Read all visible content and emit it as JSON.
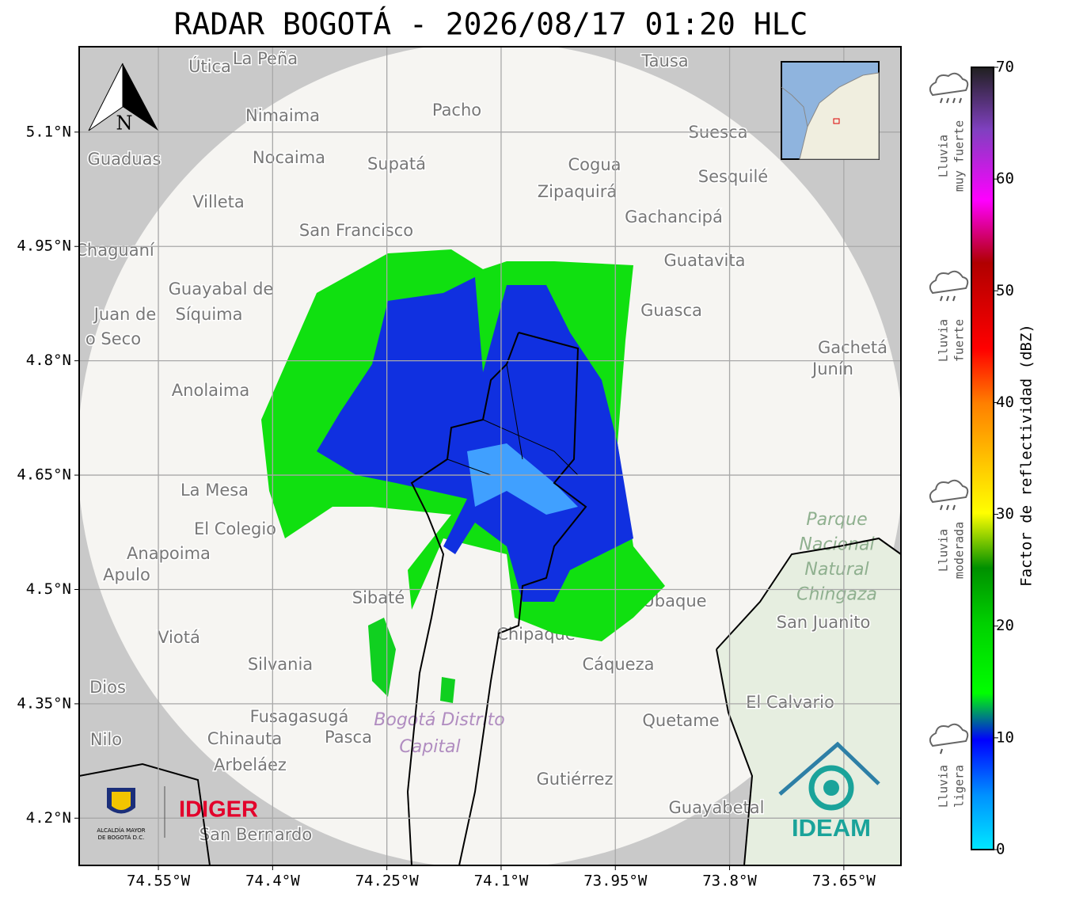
{
  "title": "RADAR BOGOTÁ - 2026/08/17 01:20 HLC",
  "map": {
    "xlim": [
      -74.654,
      -73.575
    ],
    "ylim": [
      4.138,
      5.212
    ],
    "xticks": [
      {
        "value": -74.55,
        "label": "74.55°W"
      },
      {
        "value": -74.4,
        "label": "74.4°W"
      },
      {
        "value": -74.25,
        "label": "74.25°W"
      },
      {
        "value": -74.1,
        "label": "74.1°W"
      },
      {
        "value": -73.95,
        "label": "73.95°W"
      },
      {
        "value": -73.8,
        "label": "73.8°W"
      },
      {
        "value": -73.65,
        "label": "73.65°W"
      }
    ],
    "yticks": [
      {
        "value": 5.1,
        "label": "5.1°N"
      },
      {
        "value": 4.95,
        "label": "4.95°N"
      },
      {
        "value": 4.8,
        "label": "4.8°N"
      },
      {
        "value": 4.65,
        "label": "4.65°N"
      },
      {
        "value": 4.5,
        "label": "4.5°N"
      },
      {
        "value": 4.35,
        "label": "4.35°N"
      },
      {
        "value": 4.2,
        "label": "4.2°N"
      }
    ],
    "grid": true,
    "north": "N",
    "places": [
      "Útica",
      "La Peña",
      "Tausa",
      "Pacho",
      "Nimaima",
      "Guaduas",
      "Nocaima",
      "Supatá",
      "Cogua",
      "Suesca",
      "Sesquilé",
      "Zipaquirá",
      "Villeta",
      "Gachancipá",
      "San Francisco",
      "Chaguaní",
      "Guatavita",
      "Guayabal de",
      "Síquima",
      "Juan de",
      "Guasca",
      "o Seco",
      "Gachetá",
      "Junín",
      "Anolaima",
      "La Mesa",
      "El Colegio",
      "Anapoima",
      "Apulo",
      "Sibaté",
      "Viotá",
      "Silvania",
      "Cáqueza",
      "Dios",
      "El Calvario",
      "Fusagasugá",
      "Quetame",
      "Nilo",
      "Chinauta",
      "Pasca",
      "Arbeláez",
      "Gutiérrez",
      "Guayabetal",
      "San Bernardo",
      "Ubaque",
      "San Juanito",
      "Chipaque"
    ],
    "areas": [
      [
        "Parque",
        "Nacional",
        "Natural",
        "Chingaza"
      ],
      [
        "Bogotá Distrito",
        "Capital"
      ]
    ],
    "logos": {
      "idiger": "IDIGER",
      "ideam": "IDEAM",
      "alcaldia": [
        "ALCALDÍA MAYOR",
        "DE BOGOTÁ D.C."
      ]
    }
  },
  "colorbar": {
    "label": "Factor de reflectividad (dBZ)",
    "lim": [
      0,
      70
    ],
    "ticks": [
      0,
      10,
      20,
      30,
      40,
      50,
      60,
      70
    ],
    "categories": [
      [
        "Lluvia",
        "muy fuerte"
      ],
      [
        "Lluvia",
        "fuerte"
      ],
      [
        "Lluvia",
        "moderada"
      ],
      [
        "Lluvia",
        "ligera"
      ]
    ]
  }
}
